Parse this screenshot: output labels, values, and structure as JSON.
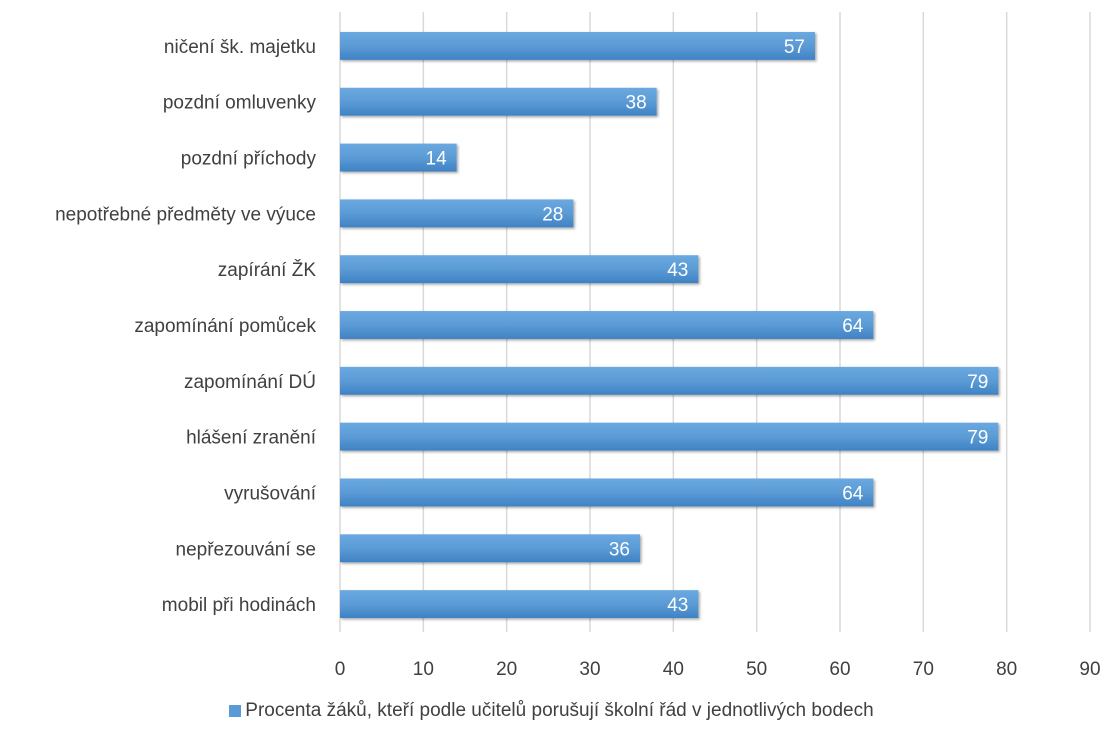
{
  "chart_data": {
    "type": "bar",
    "orientation": "horizontal",
    "categories": [
      "ničení šk. majetku",
      "pozdní omluvenky",
      "pozdní příchody",
      "nepotřebné předměty ve výuce",
      "zapírání ŽK",
      "zapomínání pomůcek",
      "zapomínání DÚ",
      "hlášení zranění",
      "vyrušování",
      "nepřezouvání se",
      "mobil při hodinách"
    ],
    "series": [
      {
        "name": "Procenta žáků, kteří podle učitelů porušují školní řád v jednotlivých bodech",
        "values": [
          57,
          38,
          14,
          28,
          43,
          64,
          79,
          79,
          64,
          36,
          43
        ],
        "color": "#5B9BD5"
      }
    ],
    "xlim": [
      0,
      90
    ],
    "x_ticks": [
      "0",
      "10",
      "20",
      "30",
      "40",
      "50",
      "60",
      "70",
      "80",
      "90"
    ],
    "data_labels": true,
    "grid": "vertical",
    "legend_position": "bottom",
    "colors": {
      "bar": "#5B9BD5",
      "grid": "#d9d9d9",
      "text": "#404040",
      "data_label": "#ffffff"
    }
  }
}
